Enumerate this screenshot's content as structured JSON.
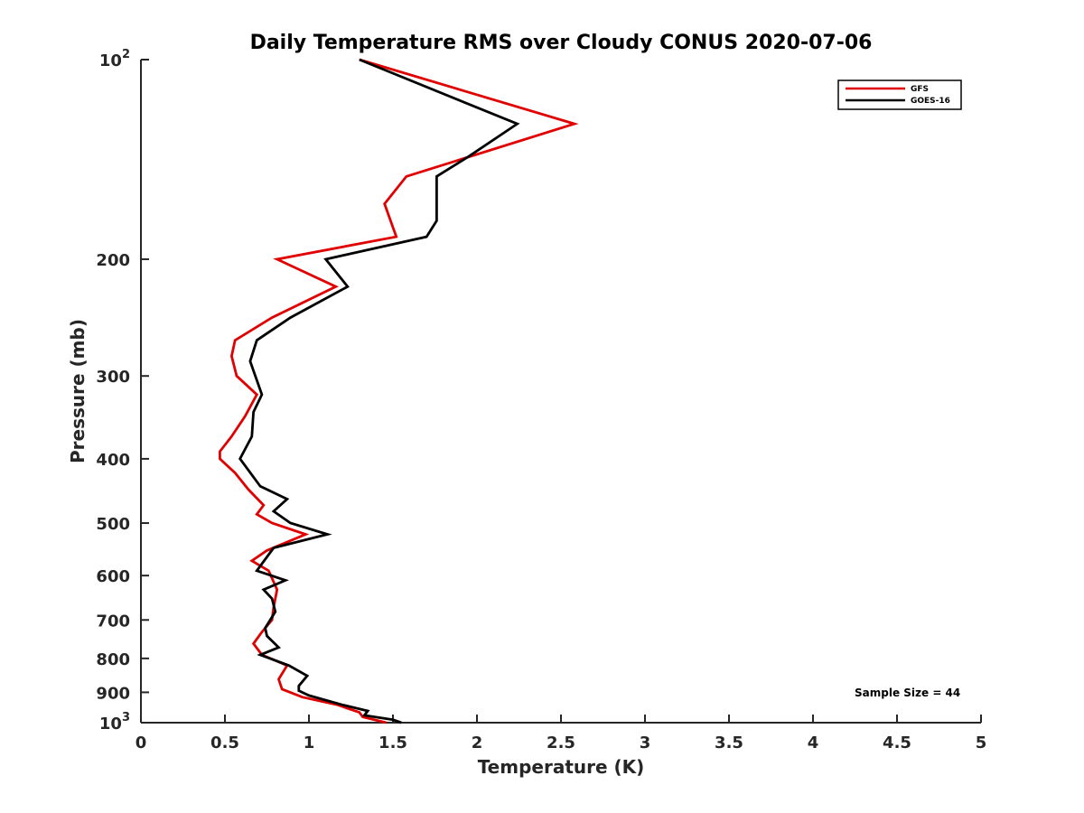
{
  "chart_data": {
    "type": "line",
    "title": "Daily Temperature RMS over Cloudy CONUS 2020-07-06",
    "xlabel": "Temperature (K)",
    "ylabel": "Pressure (mb)",
    "xlim": [
      0,
      5
    ],
    "ylim": [
      100,
      1000
    ],
    "yscale": "log",
    "y_reversed": true,
    "grid": false,
    "legend_position": "top-right",
    "x_ticks": [
      0,
      0.5,
      1,
      1.5,
      2,
      2.5,
      3,
      3.5,
      4,
      4.5,
      5
    ],
    "x_tick_labels": [
      "0",
      "0.5",
      "1",
      "1.5",
      "2",
      "2.5",
      "3",
      "3.5",
      "4",
      "4.5",
      "5"
    ],
    "y_ticks": [
      {
        "value": 100,
        "base": "10",
        "exp": "2"
      },
      {
        "value": 200,
        "label": "200"
      },
      {
        "value": 300,
        "label": "300"
      },
      {
        "value": 400,
        "label": "400"
      },
      {
        "value": 500,
        "label": "500"
      },
      {
        "value": 600,
        "label": "600"
      },
      {
        "value": 700,
        "label": "700"
      },
      {
        "value": 800,
        "label": "800"
      },
      {
        "value": 900,
        "label": "900"
      },
      {
        "value": 1000,
        "base": "10",
        "exp": "3"
      }
    ],
    "annotation": "Sample Size = 44",
    "series": [
      {
        "name": "GFS",
        "color": "#e00000",
        "points": [
          [
            1.3,
            100
          ],
          [
            2.58,
            125
          ],
          [
            1.58,
            150
          ],
          [
            1.45,
            165
          ],
          [
            1.52,
            185
          ],
          [
            0.81,
            200
          ],
          [
            1.16,
            220
          ],
          [
            0.78,
            245
          ],
          [
            0.56,
            265
          ],
          [
            0.54,
            280
          ],
          [
            0.57,
            300
          ],
          [
            0.69,
            320
          ],
          [
            0.62,
            345
          ],
          [
            0.54,
            370
          ],
          [
            0.47,
            390
          ],
          [
            0.47,
            400
          ],
          [
            0.56,
            420
          ],
          [
            0.64,
            445
          ],
          [
            0.73,
            470
          ],
          [
            0.69,
            485
          ],
          [
            0.78,
            500
          ],
          [
            0.98,
            520
          ],
          [
            0.75,
            550
          ],
          [
            0.66,
            570
          ],
          [
            0.76,
            590
          ],
          [
            0.81,
            630
          ],
          [
            0.79,
            670
          ],
          [
            0.78,
            700
          ],
          [
            0.72,
            730
          ],
          [
            0.67,
            760
          ],
          [
            0.72,
            790
          ],
          [
            0.87,
            820
          ],
          [
            0.82,
            860
          ],
          [
            0.84,
            890
          ],
          [
            0.96,
            915
          ],
          [
            1.17,
            940
          ],
          [
            1.3,
            965
          ],
          [
            1.32,
            980
          ],
          [
            1.46,
            1000
          ]
        ]
      },
      {
        "name": "GOES-16",
        "color": "#000000",
        "points": [
          [
            1.3,
            100
          ],
          [
            2.24,
            125
          ],
          [
            1.95,
            140
          ],
          [
            1.76,
            150
          ],
          [
            1.76,
            175
          ],
          [
            1.7,
            185
          ],
          [
            1.1,
            200
          ],
          [
            1.23,
            220
          ],
          [
            0.89,
            245
          ],
          [
            0.69,
            265
          ],
          [
            0.65,
            285
          ],
          [
            0.72,
            320
          ],
          [
            0.67,
            340
          ],
          [
            0.66,
            370
          ],
          [
            0.59,
            400
          ],
          [
            0.71,
            440
          ],
          [
            0.87,
            460
          ],
          [
            0.79,
            480
          ],
          [
            0.89,
            500
          ],
          [
            1.11,
            520
          ],
          [
            0.79,
            545
          ],
          [
            0.69,
            590
          ],
          [
            0.86,
            610
          ],
          [
            0.73,
            630
          ],
          [
            0.78,
            650
          ],
          [
            0.8,
            680
          ],
          [
            0.74,
            720
          ],
          [
            0.75,
            740
          ],
          [
            0.82,
            770
          ],
          [
            0.71,
            790
          ],
          [
            0.88,
            820
          ],
          [
            0.99,
            850
          ],
          [
            0.94,
            880
          ],
          [
            0.94,
            895
          ],
          [
            1.0,
            910
          ],
          [
            1.2,
            940
          ],
          [
            1.35,
            960
          ],
          [
            1.33,
            975
          ],
          [
            1.5,
            990
          ],
          [
            1.55,
            1000
          ]
        ]
      }
    ]
  }
}
